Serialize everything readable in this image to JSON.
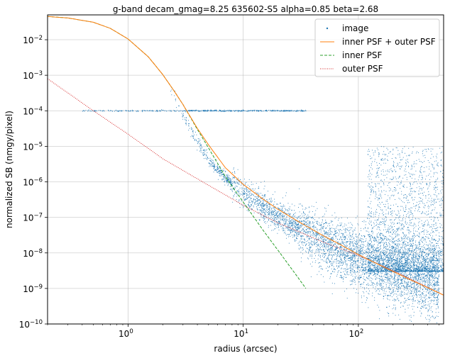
{
  "chart_data": {
    "type": "line",
    "title": "g-band  decam_gmag=8.25  635602-S5  alpha=0.85  beta=2.68",
    "xlabel": "radius (arcsec)",
    "ylabel": "normalized SB (nmgy/pixel)",
    "xscale": "log",
    "yscale": "log",
    "xlim": [
      0.2,
      550
    ],
    "ylim": [
      1e-10,
      0.05
    ],
    "grid": true,
    "legend_position": "top-right",
    "x_ticks": [
      {
        "value": 1,
        "base": "10",
        "exp": "0"
      },
      {
        "value": 10,
        "base": "10",
        "exp": "1"
      },
      {
        "value": 100,
        "base": "10",
        "exp": "2"
      }
    ],
    "y_ticks": [
      {
        "value": 1e-10,
        "base": "10",
        "exp": "−10"
      },
      {
        "value": 1e-09,
        "base": "10",
        "exp": "−9"
      },
      {
        "value": 1e-08,
        "base": "10",
        "exp": "−8"
      },
      {
        "value": 1e-07,
        "base": "10",
        "exp": "−7"
      },
      {
        "value": 1e-06,
        "base": "10",
        "exp": "−6"
      },
      {
        "value": 1e-05,
        "base": "10",
        "exp": "−5"
      },
      {
        "value": 0.0001,
        "base": "10",
        "exp": "−4"
      },
      {
        "value": 0.001,
        "base": "10",
        "exp": "−3"
      },
      {
        "value": 0.01,
        "base": "10",
        "exp": "−2"
      }
    ],
    "series": [
      {
        "name": "image",
        "kind": "scatter",
        "color": "#1f77b4",
        "note_x": [
          0.4,
          0.6,
          1.0,
          2.0,
          3.0,
          5.0,
          7.0,
          10,
          15,
          20,
          30,
          50,
          80,
          120,
          200,
          300,
          500
        ],
        "median_y": [
          null,
          null,
          0.01,
          0.0011,
          7e-05,
          4e-06,
          1.3e-06,
          4.5e-07,
          2e-07,
          1.1e-07,
          5e-08,
          2e-08,
          9e-09,
          6e-09,
          3.5e-09,
          2.5e-09,
          1.8e-09
        ],
        "flat_band_y": 0.0001,
        "flat_band_x": [
          0.4,
          35
        ]
      },
      {
        "name": "inner PSF + outer PSF",
        "kind": "line",
        "color": "#ff7f0e",
        "dash": "solid",
        "x": [
          0.2,
          0.3,
          0.5,
          0.7,
          1.0,
          1.5,
          2.0,
          2.5,
          3.0,
          4.0,
          5.0,
          7.0,
          10,
          15,
          20,
          30,
          50,
          70,
          100,
          150,
          200,
          300,
          400,
          550
        ],
        "y": [
          0.045,
          0.041,
          0.031,
          0.021,
          0.0105,
          0.0033,
          0.00105,
          0.00037,
          0.00015,
          3.2e-05,
          1.1e-05,
          2.5e-06,
          8.5e-07,
          3.2e-07,
          1.7e-07,
          7.7e-08,
          3e-08,
          1.7e-08,
          9e-09,
          4.7e-09,
          3e-09,
          1.6e-09,
          1.05e-09,
          6.5e-10
        ]
      },
      {
        "name": "inner PSF",
        "kind": "line",
        "color": "#2ca02c",
        "dash": "dashed",
        "x": [
          0.2,
          0.3,
          0.5,
          0.7,
          1.0,
          1.5,
          2.0,
          2.5,
          3.0,
          4.0,
          5.0,
          7.0,
          10,
          15,
          20,
          30,
          35
        ],
        "y": [
          0.045,
          0.041,
          0.031,
          0.021,
          0.0105,
          0.0033,
          0.00105,
          0.00037,
          0.00015,
          3e-05,
          9e-06,
          1.4e-06,
          2.7e-07,
          4.2e-08,
          1.2e-08,
          2e-09,
          1e-09
        ]
      },
      {
        "name": "outer PSF",
        "kind": "line",
        "color": "#d62728",
        "dash": "dotted",
        "x": [
          0.2,
          0.5,
          1.0,
          2.0,
          5.0,
          10,
          20,
          50,
          100,
          200,
          550
        ],
        "y": [
          0.0008,
          0.0001,
          2.2e-05,
          4.5e-06,
          8e-07,
          2.2e-07,
          7e-08,
          2e-08,
          8.5e-09,
          3.2e-09,
          6.5e-10
        ]
      }
    ]
  }
}
